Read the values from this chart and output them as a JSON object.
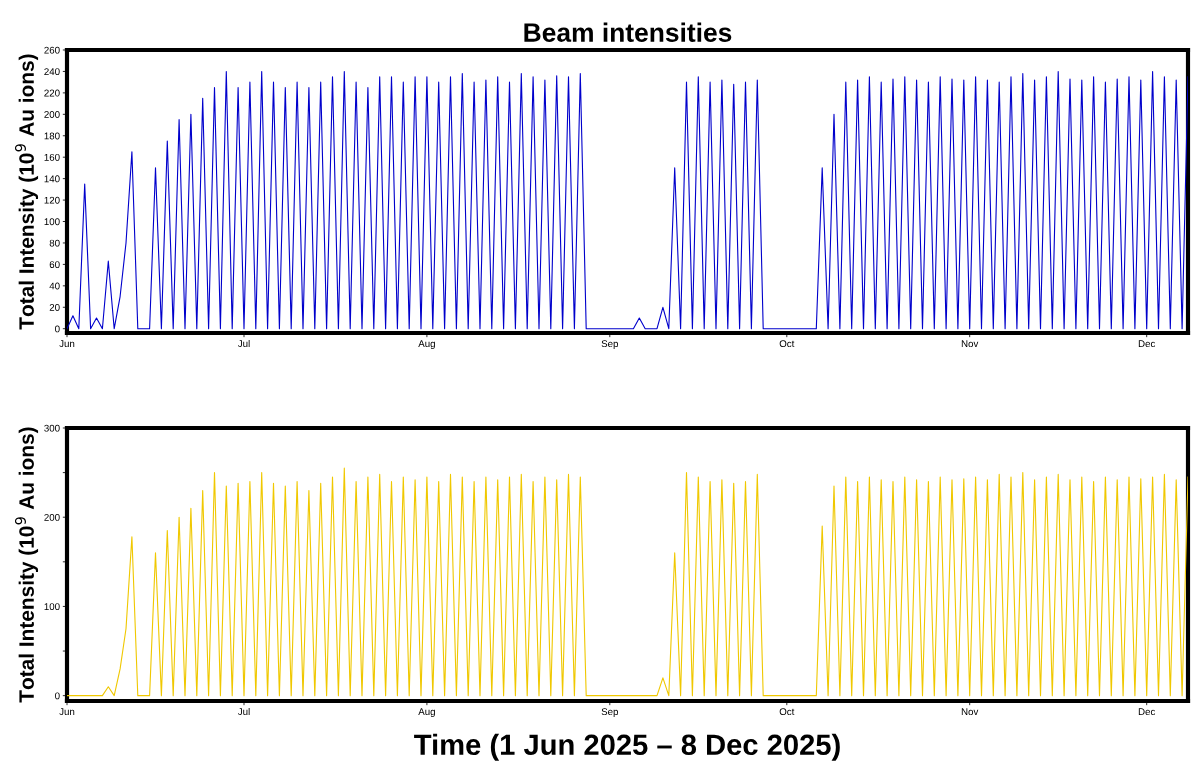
{
  "chart_data": [
    {
      "type": "line",
      "title": "Beam intensities",
      "ylabel": "Total Intensity (10$^{9}$ Au ions)",
      "x": [
        "2025-06-01",
        "2025-06-02",
        "2025-06-03",
        "2025-06-04",
        "2025-06-05",
        "2025-06-06",
        "2025-06-07",
        "2025-06-08",
        "2025-06-09",
        "2025-06-10",
        "2025-06-11",
        "2025-06-12",
        "2025-06-13",
        "2025-06-15",
        "2025-06-16",
        "2025-06-17",
        "2025-06-18",
        "2025-06-19",
        "2025-06-20",
        "2025-06-21",
        "2025-06-22",
        "2025-06-23",
        "2025-06-24",
        "2025-06-25",
        "2025-06-26",
        "2025-06-27",
        "2025-06-28",
        "2025-06-29",
        "2025-06-30",
        "2025-07-01",
        "2025-07-02",
        "2025-07-03",
        "2025-07-04",
        "2025-07-05",
        "2025-07-06",
        "2025-07-07",
        "2025-07-08",
        "2025-07-09",
        "2025-07-10",
        "2025-07-11",
        "2025-07-12",
        "2025-07-13",
        "2025-07-14",
        "2025-07-15",
        "2025-07-16",
        "2025-07-17",
        "2025-07-18",
        "2025-07-19",
        "2025-07-20",
        "2025-07-21",
        "2025-07-22",
        "2025-07-23",
        "2025-07-24",
        "2025-07-25",
        "2025-07-26",
        "2025-07-27",
        "2025-07-28",
        "2025-07-29",
        "2025-07-30",
        "2025-07-31",
        "2025-08-01",
        "2025-08-02",
        "2025-08-03",
        "2025-08-04",
        "2025-08-05",
        "2025-08-06",
        "2025-08-07",
        "2025-08-08",
        "2025-08-09",
        "2025-08-10",
        "2025-08-11",
        "2025-08-12",
        "2025-08-13",
        "2025-08-14",
        "2025-08-15",
        "2025-08-16",
        "2025-08-17",
        "2025-08-18",
        "2025-08-19",
        "2025-08-20",
        "2025-08-21",
        "2025-08-22",
        "2025-08-23",
        "2025-08-24",
        "2025-08-25",
        "2025-08-26",
        "2025-08-27",
        "2025-08-28",
        "2025-09-05",
        "2025-09-06",
        "2025-09-07",
        "2025-09-09",
        "2025-09-10",
        "2025-09-11",
        "2025-09-12",
        "2025-09-13",
        "2025-09-14",
        "2025-09-15",
        "2025-09-16",
        "2025-09-17",
        "2025-09-18",
        "2025-09-19",
        "2025-09-20",
        "2025-09-21",
        "2025-09-22",
        "2025-09-23",
        "2025-09-24",
        "2025-09-25",
        "2025-09-26",
        "2025-09-27",
        "2025-10-06",
        "2025-10-07",
        "2025-10-08",
        "2025-10-09",
        "2025-10-10",
        "2025-10-11",
        "2025-10-12",
        "2025-10-13",
        "2025-10-14",
        "2025-10-15",
        "2025-10-16",
        "2025-10-17",
        "2025-10-18",
        "2025-10-19",
        "2025-10-20",
        "2025-10-21",
        "2025-10-22",
        "2025-10-23",
        "2025-10-24",
        "2025-10-25",
        "2025-10-26",
        "2025-10-27",
        "2025-10-28",
        "2025-10-29",
        "2025-10-30",
        "2025-10-31",
        "2025-11-01",
        "2025-11-02",
        "2025-11-03",
        "2025-11-04",
        "2025-11-05",
        "2025-11-06",
        "2025-11-07",
        "2025-11-08",
        "2025-11-09",
        "2025-11-10",
        "2025-11-11",
        "2025-11-12",
        "2025-11-13",
        "2025-11-14",
        "2025-11-15",
        "2025-11-16",
        "2025-11-17",
        "2025-11-18",
        "2025-11-19",
        "2025-11-20",
        "2025-11-21",
        "2025-11-22",
        "2025-11-23",
        "2025-11-24",
        "2025-11-25",
        "2025-11-26",
        "2025-11-27",
        "2025-11-28",
        "2025-11-29",
        "2025-11-30",
        "2025-12-01",
        "2025-12-02",
        "2025-12-03",
        "2025-12-04",
        "2025-12-05",
        "2025-12-06",
        "2025-12-07",
        "2025-12-08"
      ],
      "series": [
        {
          "color": "#0000cc",
          "values": [
            0,
            12,
            0,
            135,
            0,
            10,
            0,
            63,
            0,
            30,
            80,
            165,
            0,
            0,
            150,
            0,
            175,
            0,
            195,
            0,
            200,
            0,
            215,
            0,
            225,
            0,
            240,
            0,
            225,
            0,
            230,
            0,
            240,
            0,
            230,
            0,
            225,
            0,
            230,
            0,
            225,
            0,
            230,
            0,
            235,
            0,
            240,
            0,
            230,
            0,
            225,
            0,
            235,
            0,
            235,
            0,
            230,
            0,
            235,
            0,
            235,
            0,
            230,
            0,
            235,
            0,
            238,
            0,
            230,
            0,
            232,
            0,
            235,
            0,
            230,
            0,
            238,
            0,
            235,
            0,
            232,
            0,
            236,
            0,
            235,
            0,
            238,
            0,
            0,
            10,
            0,
            0,
            20,
            0,
            150,
            0,
            230,
            0,
            235,
            0,
            230,
            0,
            232,
            0,
            228,
            0,
            230,
            0,
            232,
            0,
            0,
            150,
            0,
            200,
            0,
            230,
            0,
            232,
            0,
            235,
            0,
            230,
            0,
            233,
            0,
            235,
            0,
            232,
            0,
            230,
            0,
            235,
            0,
            233,
            0,
            232,
            0,
            235,
            0,
            232,
            0,
            230,
            0,
            235,
            0,
            238,
            0,
            232,
            0,
            235,
            0,
            240,
            0,
            233,
            0,
            232,
            0,
            235,
            0,
            230,
            0,
            233,
            0,
            235,
            0,
            232,
            0,
            240,
            0,
            235,
            0,
            232,
            0,
            235
          ]
        }
      ],
      "xlim": [
        "2025-06-01",
        "2025-12-08"
      ],
      "xticks": [
        {
          "value": "2025-06-01",
          "label": "Jun"
        },
        {
          "value": "2025-07-01",
          "label": "Jul"
        },
        {
          "value": "2025-08-01",
          "label": "Aug"
        },
        {
          "value": "2025-09-01",
          "label": "Sep"
        },
        {
          "value": "2025-10-01",
          "label": "Oct"
        },
        {
          "value": "2025-11-01",
          "label": "Nov"
        },
        {
          "value": "2025-12-01",
          "label": "Dec"
        }
      ],
      "ylim": [
        -4,
        260
      ],
      "yticks": [
        0,
        20,
        40,
        60,
        80,
        100,
        120,
        140,
        160,
        180,
        200,
        220,
        240,
        260
      ],
      "grid": false
    },
    {
      "type": "line",
      "ylabel": "Total Intensity (10$^{9}$ Au ions)",
      "xlabel": "Time (1 Jun 2025 – 8 Dec 2025)",
      "x": [
        "2025-06-01",
        "2025-06-02",
        "2025-06-03",
        "2025-06-04",
        "2025-06-05",
        "2025-06-06",
        "2025-06-07",
        "2025-06-08",
        "2025-06-09",
        "2025-06-10",
        "2025-06-11",
        "2025-06-12",
        "2025-06-13",
        "2025-06-15",
        "2025-06-16",
        "2025-06-17",
        "2025-06-18",
        "2025-06-19",
        "2025-06-20",
        "2025-06-21",
        "2025-06-22",
        "2025-06-23",
        "2025-06-24",
        "2025-06-25",
        "2025-06-26",
        "2025-06-27",
        "2025-06-28",
        "2025-06-29",
        "2025-06-30",
        "2025-07-01",
        "2025-07-02",
        "2025-07-03",
        "2025-07-04",
        "2025-07-05",
        "2025-07-06",
        "2025-07-07",
        "2025-07-08",
        "2025-07-09",
        "2025-07-10",
        "2025-07-11",
        "2025-07-12",
        "2025-07-13",
        "2025-07-14",
        "2025-07-15",
        "2025-07-16",
        "2025-07-17",
        "2025-07-18",
        "2025-07-19",
        "2025-07-20",
        "2025-07-21",
        "2025-07-22",
        "2025-07-23",
        "2025-07-24",
        "2025-07-25",
        "2025-07-26",
        "2025-07-27",
        "2025-07-28",
        "2025-07-29",
        "2025-07-30",
        "2025-07-31",
        "2025-08-01",
        "2025-08-02",
        "2025-08-03",
        "2025-08-04",
        "2025-08-05",
        "2025-08-06",
        "2025-08-07",
        "2025-08-08",
        "2025-08-09",
        "2025-08-10",
        "2025-08-11",
        "2025-08-12",
        "2025-08-13",
        "2025-08-14",
        "2025-08-15",
        "2025-08-16",
        "2025-08-17",
        "2025-08-18",
        "2025-08-19",
        "2025-08-20",
        "2025-08-21",
        "2025-08-22",
        "2025-08-23",
        "2025-08-24",
        "2025-08-25",
        "2025-08-26",
        "2025-08-27",
        "2025-08-28",
        "2025-09-05",
        "2025-09-06",
        "2025-09-07",
        "2025-09-09",
        "2025-09-10",
        "2025-09-11",
        "2025-09-12",
        "2025-09-13",
        "2025-09-14",
        "2025-09-15",
        "2025-09-16",
        "2025-09-17",
        "2025-09-18",
        "2025-09-19",
        "2025-09-20",
        "2025-09-21",
        "2025-09-22",
        "2025-09-23",
        "2025-09-24",
        "2025-09-25",
        "2025-09-26",
        "2025-09-27",
        "2025-10-06",
        "2025-10-07",
        "2025-10-08",
        "2025-10-09",
        "2025-10-10",
        "2025-10-11",
        "2025-10-12",
        "2025-10-13",
        "2025-10-14",
        "2025-10-15",
        "2025-10-16",
        "2025-10-17",
        "2025-10-18",
        "2025-10-19",
        "2025-10-20",
        "2025-10-21",
        "2025-10-22",
        "2025-10-23",
        "2025-10-24",
        "2025-10-25",
        "2025-10-26",
        "2025-10-27",
        "2025-10-28",
        "2025-10-29",
        "2025-10-30",
        "2025-10-31",
        "2025-11-01",
        "2025-11-02",
        "2025-11-03",
        "2025-11-04",
        "2025-11-05",
        "2025-11-06",
        "2025-11-07",
        "2025-11-08",
        "2025-11-09",
        "2025-11-10",
        "2025-11-11",
        "2025-11-12",
        "2025-11-13",
        "2025-11-14",
        "2025-11-15",
        "2025-11-16",
        "2025-11-17",
        "2025-11-18",
        "2025-11-19",
        "2025-11-20",
        "2025-11-21",
        "2025-11-22",
        "2025-11-23",
        "2025-11-24",
        "2025-11-25",
        "2025-11-26",
        "2025-11-27",
        "2025-11-28",
        "2025-11-29",
        "2025-11-30",
        "2025-12-01",
        "2025-12-02",
        "2025-12-03",
        "2025-12-04",
        "2025-12-05",
        "2025-12-06",
        "2025-12-07",
        "2025-12-08"
      ],
      "series": [
        {
          "color": "#f0c800",
          "values": [
            0,
            0,
            0,
            0,
            0,
            0,
            0,
            10,
            0,
            30,
            75,
            178,
            0,
            0,
            160,
            0,
            185,
            0,
            200,
            0,
            210,
            0,
            230,
            0,
            250,
            0,
            235,
            0,
            238,
            0,
            240,
            0,
            250,
            0,
            238,
            0,
            235,
            0,
            240,
            0,
            230,
            0,
            238,
            0,
            245,
            0,
            255,
            0,
            240,
            0,
            245,
            0,
            248,
            0,
            240,
            0,
            245,
            0,
            242,
            0,
            245,
            0,
            240,
            0,
            248,
            0,
            245,
            0,
            240,
            0,
            245,
            0,
            242,
            0,
            245,
            0,
            248,
            0,
            240,
            0,
            245,
            0,
            242,
            0,
            248,
            0,
            245,
            0,
            0,
            0,
            0,
            0,
            20,
            0,
            160,
            0,
            250,
            0,
            245,
            0,
            240,
            0,
            242,
            0,
            238,
            0,
            240,
            0,
            248,
            0,
            0,
            190,
            0,
            235,
            0,
            245,
            0,
            240,
            0,
            245,
            0,
            242,
            0,
            240,
            0,
            245,
            0,
            242,
            0,
            240,
            0,
            245,
            0,
            242,
            0,
            243,
            0,
            245,
            0,
            242,
            0,
            248,
            0,
            245,
            0,
            250,
            0,
            242,
            0,
            245,
            0,
            248,
            0,
            242,
            0,
            245,
            0,
            240,
            0,
            245,
            0,
            242,
            0,
            245,
            0,
            243,
            0,
            245,
            0,
            248,
            0,
            242,
            0,
            245
          ]
        }
      ],
      "xlim": [
        "2025-06-01",
        "2025-12-08"
      ],
      "xticks": [
        {
          "value": "2025-06-01",
          "label": "Jun"
        },
        {
          "value": "2025-07-01",
          "label": "Jul"
        },
        {
          "value": "2025-08-01",
          "label": "Aug"
        },
        {
          "value": "2025-09-01",
          "label": "Sep"
        },
        {
          "value": "2025-10-01",
          "label": "Oct"
        },
        {
          "value": "2025-11-01",
          "label": "Nov"
        },
        {
          "value": "2025-12-01",
          "label": "Dec"
        }
      ],
      "ylim": [
        -6,
        300
      ],
      "yticks": [
        0,
        {
          "value": 50,
          "label": null
        },
        100,
        {
          "value": 150,
          "label": null
        },
        200,
        {
          "value": 250,
          "label": null
        },
        300
      ],
      "grid": false
    }
  ]
}
